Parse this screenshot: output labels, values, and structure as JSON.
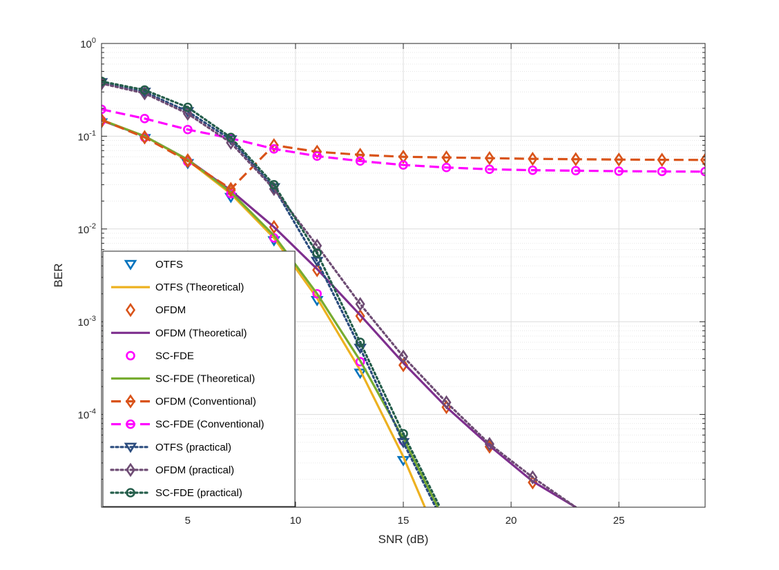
{
  "chart_data": {
    "type": "line",
    "title": "",
    "xlabel": "SNR (dB)",
    "ylabel": "BER",
    "xlim": [
      1,
      29
    ],
    "ylim": [
      1e-05,
      1
    ],
    "yscale": "log",
    "grid": true,
    "legend_position": "bottom-left",
    "x_ticks": [
      5,
      10,
      15,
      20,
      25
    ],
    "x_tick_labels": [
      "5",
      "10",
      "15",
      "20",
      "25"
    ],
    "y_ticks": [
      1,
      0.1,
      0.01,
      0.001,
      0.0001
    ],
    "y_tick_labels": [
      {
        "base": "10",
        "exp": "0"
      },
      {
        "base": "10",
        "exp": "-1"
      },
      {
        "base": "10",
        "exp": "-2"
      },
      {
        "base": "10",
        "exp": "-3"
      },
      {
        "base": "10",
        "exp": "-4"
      }
    ],
    "series": [
      {
        "name": "OTFS",
        "color": "#0072BD",
        "line": "none",
        "marker": "triangle-down",
        "x": [
          1,
          3,
          5,
          7,
          9,
          11,
          13,
          15
        ],
        "y": [
          0.14,
          0.095,
          0.051,
          0.022,
          0.0075,
          0.0017,
          0.00028,
          3.2e-05
        ]
      },
      {
        "name": "OTFS (Theoretical)",
        "color": "#EDB120",
        "line": "solid",
        "marker": "none",
        "x": [
          1,
          3,
          5,
          7,
          9,
          11,
          13,
          15,
          16
        ],
        "y": [
          0.15,
          0.1,
          0.055,
          0.024,
          0.008,
          0.0018,
          0.0003,
          3.5e-05,
          1e-05
        ]
      },
      {
        "name": "OFDM",
        "color": "#D95319",
        "line": "none",
        "marker": "diamond",
        "x": [
          1,
          3,
          5,
          7,
          9,
          11,
          13,
          15,
          17,
          19,
          21
        ],
        "y": [
          0.145,
          0.098,
          0.055,
          0.026,
          0.0105,
          0.0036,
          0.00115,
          0.00034,
          0.00012,
          4.5e-05,
          1.85e-05
        ]
      },
      {
        "name": "OFDM (Theoretical)",
        "color": "#7E2F8E",
        "line": "solid",
        "marker": "none",
        "x": [
          1,
          3,
          5,
          7,
          9,
          11,
          13,
          15,
          17,
          19,
          21,
          23
        ],
        "y": [
          0.148,
          0.1,
          0.056,
          0.026,
          0.0105,
          0.0037,
          0.00118,
          0.00036,
          0.00012,
          4.6e-05,
          1.9e-05,
          1e-05
        ]
      },
      {
        "name": "SC-FDE",
        "color": "#FF00FF",
        "line": "none",
        "marker": "circle",
        "x": [
          1,
          3,
          5,
          7,
          9,
          11,
          13,
          15
        ],
        "y": [
          0.148,
          0.097,
          0.053,
          0.024,
          0.008,
          0.002,
          0.00037,
          5.2e-05
        ]
      },
      {
        "name": "SC-FDE (Theoretical)",
        "color": "#77AC30",
        "line": "solid",
        "marker": "none",
        "x": [
          1,
          3,
          5,
          7,
          9,
          11,
          13,
          15,
          16.6
        ],
        "y": [
          0.15,
          0.1,
          0.056,
          0.025,
          0.0085,
          0.002,
          0.00038,
          5.5e-05,
          1e-05
        ]
      },
      {
        "name": "OFDM (Conventional)",
        "color": "#D95319",
        "line": "dashed",
        "marker": "diamond",
        "x": [
          1,
          3,
          5,
          7,
          9,
          11,
          13,
          15,
          17,
          19,
          21,
          23,
          25,
          27,
          29
        ],
        "y": [
          0.15,
          0.097,
          0.054,
          0.027,
          0.08,
          0.068,
          0.063,
          0.06,
          0.059,
          0.058,
          0.057,
          0.0565,
          0.056,
          0.0557,
          0.0555
        ]
      },
      {
        "name": "SC-FDE (Conventional)",
        "color": "#FF00FF",
        "line": "dashed",
        "marker": "circle",
        "x": [
          1,
          3,
          5,
          7,
          9,
          11,
          13,
          15,
          17,
          19,
          21,
          23,
          25,
          27,
          29
        ],
        "y": [
          0.195,
          0.155,
          0.118,
          0.095,
          0.073,
          0.061,
          0.054,
          0.049,
          0.046,
          0.044,
          0.043,
          0.0425,
          0.042,
          0.0417,
          0.0415
        ]
      },
      {
        "name": "OTFS (practical)",
        "color": "#2B4C7E",
        "line": "dotted",
        "marker": "triangle-down",
        "x": [
          1,
          3,
          5,
          7,
          9,
          11,
          13,
          15,
          16.5
        ],
        "y": [
          0.38,
          0.3,
          0.185,
          0.092,
          0.028,
          0.0045,
          0.00052,
          5e-05,
          1e-05
        ]
      },
      {
        "name": "OFDM (practical)",
        "color": "#6E4C74",
        "line": "dotted",
        "marker": "diamond",
        "x": [
          1,
          3,
          5,
          7,
          9,
          11,
          13,
          15,
          17,
          19,
          21,
          23
        ],
        "y": [
          0.37,
          0.29,
          0.175,
          0.085,
          0.027,
          0.0066,
          0.00155,
          0.00042,
          0.000135,
          4.8e-05,
          2.1e-05,
          1e-05
        ]
      },
      {
        "name": "SC-FDE (practical)",
        "color": "#255E4B",
        "line": "dotted",
        "marker": "circle-dot",
        "x": [
          1,
          3,
          5,
          7,
          9,
          11,
          13,
          15,
          16.7
        ],
        "y": [
          0.39,
          0.315,
          0.205,
          0.097,
          0.03,
          0.0055,
          0.0006,
          6.2e-05,
          1e-05
        ]
      }
    ]
  }
}
